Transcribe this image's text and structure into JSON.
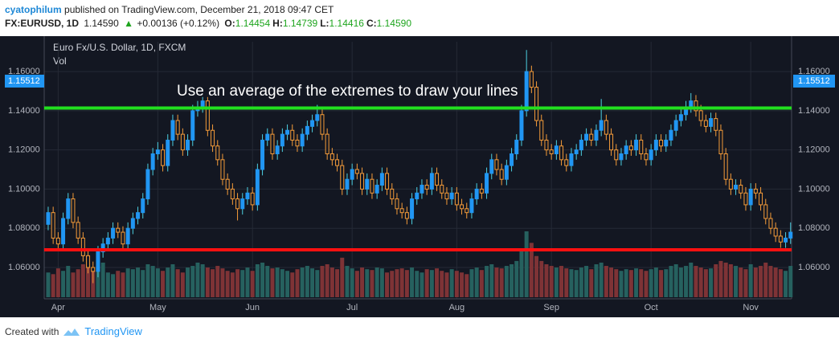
{
  "header": {
    "author": "cyatophilum",
    "published": " published on TradingView.com, December 21, 2018 09:47 CET",
    "symbol": "FX:EURUSD, 1D",
    "last": "1.14590",
    "arrow": "▲",
    "change": "+0.00136 (+0.12%)",
    "ohlc": [
      {
        "label": "O:",
        "value": "1.14454"
      },
      {
        "label": "H:",
        "value": "1.14739"
      },
      {
        "label": "L:",
        "value": "1.14416"
      },
      {
        "label": "C:",
        "value": "1.14590"
      }
    ]
  },
  "chart_data": {
    "type": "candlestick",
    "title": "Euro Fx/U.S. Dollar, 1D, FXCM",
    "volume_label": "Vol",
    "annotation": "Use an average of the extremes to draw your lines",
    "up_color": "#2196f3",
    "up_wick": "#4dd0e1",
    "down_color": "#f59c3a",
    "up_volume_color": "#26615f",
    "down_volume_color": "#7e3336",
    "grid": true,
    "xlim": [
      -0.8,
      149.2
    ],
    "ylim": [
      1.044,
      1.1752
    ],
    "xticks": [
      {
        "value": 2,
        "label": "Apr"
      },
      {
        "value": 22,
        "label": "May"
      },
      {
        "value": 41,
        "label": "Jun"
      },
      {
        "value": 61,
        "label": "Jul"
      },
      {
        "value": 82,
        "label": "Aug"
      },
      {
        "value": 101,
        "label": "Sep"
      },
      {
        "value": 121,
        "label": "Oct"
      },
      {
        "value": 141,
        "label": "Nov"
      }
    ],
    "yticks": [
      {
        "value": 1.06,
        "label": "1.06000"
      },
      {
        "value": 1.08,
        "label": "1.08000"
      },
      {
        "value": 1.1,
        "label": "1.10000"
      },
      {
        "value": 1.12,
        "label": "1.12000"
      },
      {
        "value": 1.14,
        "label": "1.14000"
      },
      {
        "value": 1.16,
        "label": "1.16000"
      }
    ],
    "price_label": {
      "value": 1.15512,
      "label": "1.15512"
    },
    "hlines": [
      {
        "value": 1.1414,
        "color": "#22e01f"
      },
      {
        "value": 1.069,
        "color": "#ff1010"
      }
    ],
    "open": [
      1.082,
      1.088,
      1.075,
      1.072,
      1.085,
      1.095,
      1.083,
      1.075,
      1.066,
      1.06,
      1.058,
      1.068,
      1.072,
      1.075,
      1.08,
      1.078,
      1.072,
      1.08,
      1.085,
      1.088,
      1.095,
      1.11,
      1.118,
      1.12,
      1.112,
      1.125,
      1.135,
      1.128,
      1.12,
      1.125,
      1.14,
      1.142,
      1.145,
      1.13,
      1.122,
      1.115,
      1.105,
      1.1,
      1.095,
      1.09,
      1.095,
      1.098,
      1.092,
      1.11,
      1.125,
      1.128,
      1.118,
      1.122,
      1.128,
      1.13,
      1.125,
      1.122,
      1.128,
      1.132,
      1.135,
      1.138,
      1.128,
      1.118,
      1.115,
      1.112,
      1.1,
      1.105,
      1.11,
      1.108,
      1.1,
      1.105,
      1.098,
      1.102,
      1.108,
      1.1,
      1.095,
      1.09,
      1.088,
      1.085,
      1.095,
      1.098,
      1.102,
      1.1,
      1.108,
      1.102,
      1.098,
      1.095,
      1.098,
      1.092,
      1.09,
      1.088,
      1.095,
      1.1,
      1.098,
      1.108,
      1.115,
      1.11,
      1.105,
      1.112,
      1.118,
      1.125,
      1.14,
      1.16,
      1.152,
      1.135,
      1.125,
      1.12,
      1.118,
      1.122,
      1.115,
      1.112,
      1.118,
      1.12,
      1.125,
      1.128,
      1.125,
      1.13,
      1.135,
      1.128,
      1.12,
      1.115,
      1.118,
      1.122,
      1.12,
      1.125,
      1.118,
      1.115,
      1.12,
      1.125,
      1.122,
      1.125,
      1.13,
      1.135,
      1.138,
      1.142,
      1.145,
      1.14,
      1.135,
      1.132,
      1.136,
      1.13,
      1.118,
      1.105,
      1.1,
      1.102,
      1.098,
      1.092,
      1.1,
      1.098,
      1.092,
      1.085,
      1.08,
      1.076,
      1.073,
      1.075
    ],
    "high": [
      1.091,
      1.091,
      1.078,
      1.088,
      1.098,
      1.098,
      1.086,
      1.078,
      1.069,
      1.063,
      1.071,
      1.075,
      1.078,
      1.083,
      1.083,
      1.081,
      1.083,
      1.088,
      1.091,
      1.098,
      1.113,
      1.121,
      1.124,
      1.123,
      1.128,
      1.138,
      1.138,
      1.131,
      1.128,
      1.143,
      1.145,
      1.147,
      1.147,
      1.133,
      1.125,
      1.118,
      1.108,
      1.103,
      1.098,
      1.098,
      1.101,
      1.101,
      1.113,
      1.128,
      1.131,
      1.131,
      1.125,
      1.131,
      1.133,
      1.133,
      1.128,
      1.131,
      1.135,
      1.138,
      1.143,
      1.141,
      1.131,
      1.121,
      1.118,
      1.115,
      1.108,
      1.113,
      1.113,
      1.111,
      1.108,
      1.108,
      1.105,
      1.111,
      1.111,
      1.103,
      1.098,
      1.093,
      1.091,
      1.098,
      1.101,
      1.105,
      1.105,
      1.111,
      1.111,
      1.105,
      1.101,
      1.101,
      1.101,
      1.095,
      1.093,
      1.098,
      1.103,
      1.103,
      1.111,
      1.118,
      1.118,
      1.113,
      1.115,
      1.121,
      1.128,
      1.143,
      1.171,
      1.163,
      1.155,
      1.138,
      1.128,
      1.123,
      1.125,
      1.125,
      1.118,
      1.121,
      1.123,
      1.128,
      1.131,
      1.131,
      1.133,
      1.146,
      1.138,
      1.131,
      1.123,
      1.121,
      1.125,
      1.125,
      1.128,
      1.128,
      1.121,
      1.123,
      1.128,
      1.128,
      1.128,
      1.133,
      1.138,
      1.141,
      1.145,
      1.149,
      1.148,
      1.143,
      1.138,
      1.139,
      1.139,
      1.133,
      1.121,
      1.108,
      1.105,
      1.105,
      1.101,
      1.103,
      1.103,
      1.101,
      1.095,
      1.088,
      1.083,
      1.079,
      1.078,
      1.083
    ],
    "low": [
      1.079,
      1.072,
      1.069,
      1.069,
      1.082,
      1.08,
      1.072,
      1.063,
      1.057,
      1.052,
      1.055,
      1.065,
      1.069,
      1.072,
      1.075,
      1.069,
      1.069,
      1.077,
      1.082,
      1.085,
      1.092,
      1.107,
      1.115,
      1.109,
      1.109,
      1.122,
      1.125,
      1.117,
      1.117,
      1.122,
      1.137,
      1.139,
      1.127,
      1.119,
      1.112,
      1.102,
      1.097,
      1.092,
      1.084,
      1.087,
      1.092,
      1.089,
      1.089,
      1.107,
      1.122,
      1.115,
      1.115,
      1.119,
      1.125,
      1.122,
      1.119,
      1.119,
      1.125,
      1.129,
      1.132,
      1.125,
      1.115,
      1.112,
      1.109,
      1.097,
      1.097,
      1.102,
      1.105,
      1.097,
      1.097,
      1.095,
      1.095,
      1.099,
      1.097,
      1.092,
      1.087,
      1.085,
      1.082,
      1.082,
      1.092,
      1.095,
      1.097,
      1.097,
      1.099,
      1.095,
      1.092,
      1.092,
      1.089,
      1.087,
      1.085,
      1.085,
      1.092,
      1.095,
      1.095,
      1.105,
      1.107,
      1.102,
      1.102,
      1.109,
      1.115,
      1.122,
      1.137,
      1.149,
      1.132,
      1.122,
      1.117,
      1.115,
      1.115,
      1.112,
      1.109,
      1.109,
      1.115,
      1.117,
      1.122,
      1.122,
      1.122,
      1.127,
      1.125,
      1.117,
      1.112,
      1.112,
      1.115,
      1.117,
      1.117,
      1.115,
      1.112,
      1.112,
      1.117,
      1.119,
      1.119,
      1.122,
      1.127,
      1.132,
      1.135,
      1.139,
      1.137,
      1.132,
      1.129,
      1.129,
      1.127,
      1.115,
      1.102,
      1.097,
      1.097,
      1.095,
      1.089,
      1.089,
      1.095,
      1.089,
      1.082,
      1.077,
      1.073,
      1.07,
      1.07,
      1.072
    ],
    "close": [
      1.088,
      1.075,
      1.072,
      1.085,
      1.095,
      1.083,
      1.075,
      1.066,
      1.06,
      1.058,
      1.068,
      1.072,
      1.075,
      1.08,
      1.078,
      1.072,
      1.08,
      1.085,
      1.088,
      1.095,
      1.11,
      1.118,
      1.12,
      1.112,
      1.125,
      1.135,
      1.128,
      1.12,
      1.125,
      1.14,
      1.142,
      1.145,
      1.13,
      1.122,
      1.115,
      1.105,
      1.1,
      1.095,
      1.09,
      1.095,
      1.098,
      1.092,
      1.11,
      1.125,
      1.128,
      1.118,
      1.122,
      1.128,
      1.13,
      1.125,
      1.122,
      1.128,
      1.132,
      1.135,
      1.138,
      1.128,
      1.118,
      1.115,
      1.112,
      1.1,
      1.105,
      1.11,
      1.108,
      1.1,
      1.105,
      1.098,
      1.102,
      1.108,
      1.1,
      1.095,
      1.09,
      1.088,
      1.085,
      1.095,
      1.098,
      1.102,
      1.1,
      1.108,
      1.102,
      1.098,
      1.095,
      1.098,
      1.092,
      1.09,
      1.088,
      1.095,
      1.1,
      1.098,
      1.108,
      1.115,
      1.11,
      1.105,
      1.112,
      1.118,
      1.125,
      1.14,
      1.16,
      1.152,
      1.135,
      1.125,
      1.12,
      1.118,
      1.122,
      1.115,
      1.112,
      1.118,
      1.12,
      1.125,
      1.128,
      1.125,
      1.13,
      1.135,
      1.128,
      1.12,
      1.115,
      1.118,
      1.122,
      1.12,
      1.125,
      1.118,
      1.115,
      1.12,
      1.125,
      1.122,
      1.125,
      1.13,
      1.135,
      1.138,
      1.142,
      1.145,
      1.14,
      1.135,
      1.132,
      1.136,
      1.13,
      1.118,
      1.105,
      1.1,
      1.102,
      1.098,
      1.092,
      1.1,
      1.098,
      1.092,
      1.085,
      1.08,
      1.076,
      1.073,
      1.075,
      1.078
    ],
    "volume": [
      30,
      28,
      35,
      32,
      38,
      30,
      34,
      40,
      36,
      33,
      38,
      42,
      30,
      28,
      32,
      30,
      35,
      34,
      36,
      33,
      40,
      38,
      35,
      32,
      36,
      40,
      34,
      30,
      36,
      38,
      42,
      40,
      36,
      34,
      38,
      35,
      32,
      30,
      34,
      33,
      36,
      32,
      40,
      42,
      38,
      35,
      36,
      34,
      32,
      30,
      34,
      36,
      38,
      35,
      33,
      38,
      40,
      36,
      34,
      48,
      38,
      35,
      32,
      36,
      34,
      33,
      36,
      35,
      30,
      32,
      34,
      35,
      33,
      36,
      32,
      30,
      34,
      33,
      35,
      32,
      30,
      34,
      32,
      30,
      28,
      34,
      36,
      33,
      38,
      40,
      36,
      35,
      38,
      40,
      44,
      58,
      80,
      66,
      50,
      44,
      40,
      38,
      36,
      38,
      35,
      34,
      33,
      36,
      38,
      34,
      40,
      42,
      38,
      36,
      34,
      32,
      34,
      33,
      35,
      34,
      32,
      34,
      36,
      33,
      34,
      38,
      40,
      36,
      38,
      42,
      38,
      36,
      34,
      35,
      40,
      44,
      42,
      40,
      38,
      36,
      34,
      40,
      36,
      38,
      42,
      38,
      36,
      34,
      32,
      38
    ]
  },
  "footer": {
    "created": "Created with",
    "brand": "TradingView"
  }
}
